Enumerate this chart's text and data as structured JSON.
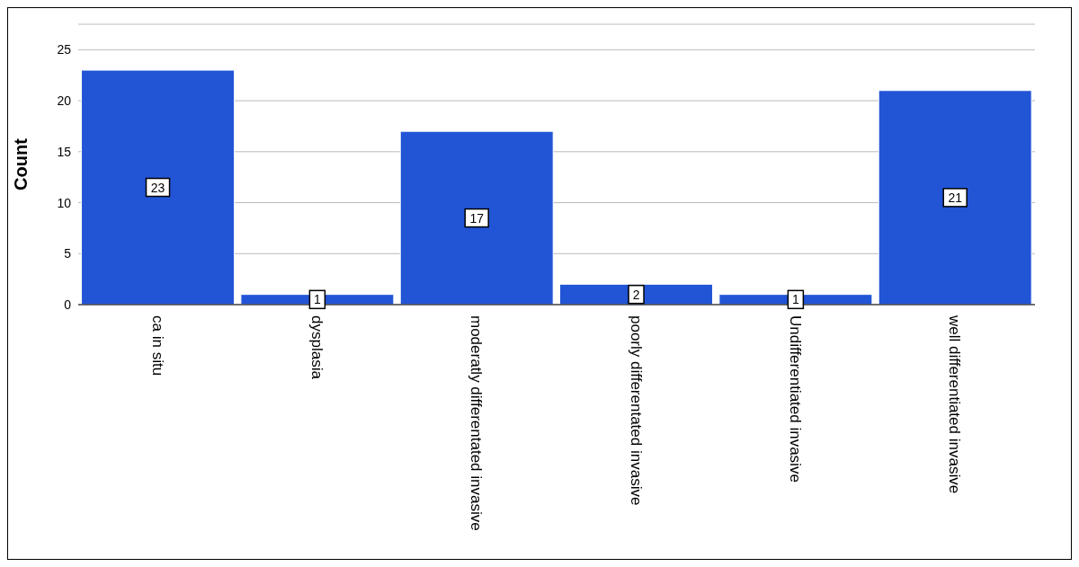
{
  "chart_data": {
    "type": "bar",
    "ylabel": "Count",
    "categories": [
      "ca in situ",
      "dysplasia",
      "moderatly differentated invasive",
      "poorly differentated invasive",
      "Undifferentiated invasive",
      "well differentiated invasive"
    ],
    "values": [
      23,
      1,
      17,
      2,
      1,
      21
    ],
    "color": "#2255d6",
    "ylim": [
      0,
      27.5
    ],
    "yticks": [
      0,
      5,
      10,
      15,
      20,
      25
    ],
    "grid": "y",
    "data_labels": true
  }
}
